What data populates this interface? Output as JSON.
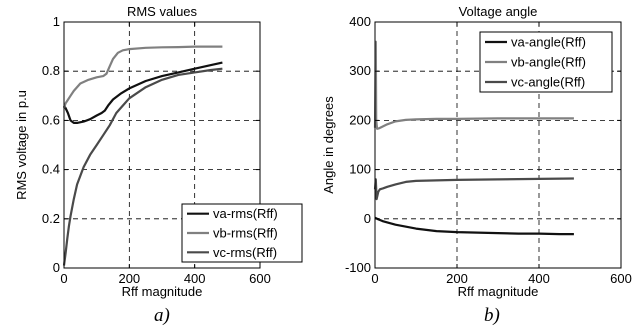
{
  "chart_data": [
    {
      "type": "line",
      "title": "RMS values",
      "xlabel": "Rff magnitude",
      "ylabel": "RMS voltage in p.u",
      "xlim": [
        0,
        600
      ],
      "ylim": [
        0,
        1
      ],
      "xticks": [
        0,
        200,
        400,
        600
      ],
      "yticks": [
        0,
        0.2,
        0.4,
        0.6,
        0.8,
        1
      ],
      "yticklabels": [
        "0",
        "0.2",
        "0.4",
        "0.6",
        "0.8",
        "1"
      ],
      "grid": true,
      "legend_position": "bottom-right",
      "caption": "a)",
      "series": [
        {
          "name": "va-rms(Rff)",
          "color": "#111111",
          "x": [
            0,
            5,
            12,
            20,
            30,
            40,
            60,
            80,
            100,
            115,
            125,
            135,
            150,
            175,
            200,
            250,
            300,
            350,
            400,
            450,
            485
          ],
          "y": [
            0.66,
            0.65,
            0.63,
            0.6,
            0.59,
            0.59,
            0.595,
            0.605,
            0.62,
            0.63,
            0.64,
            0.66,
            0.685,
            0.71,
            0.73,
            0.76,
            0.78,
            0.795,
            0.81,
            0.825,
            0.835
          ]
        },
        {
          "name": "vb-rms(Rff)",
          "color": "#808080",
          "x": [
            0,
            5,
            10,
            20,
            30,
            50,
            75,
            100,
            120,
            130,
            140,
            150,
            165,
            180,
            200,
            250,
            300,
            350,
            400,
            450,
            485
          ],
          "y": [
            0.65,
            0.67,
            0.68,
            0.7,
            0.72,
            0.75,
            0.765,
            0.775,
            0.78,
            0.79,
            0.82,
            0.85,
            0.875,
            0.885,
            0.89,
            0.895,
            0.897,
            0.898,
            0.9,
            0.9,
            0.9
          ]
        },
        {
          "name": "vc-rms(Rff)",
          "color": "#4a4a4a",
          "x": [
            0,
            5,
            10,
            15,
            20,
            30,
            40,
            60,
            80,
            100,
            120,
            140,
            160,
            180,
            200,
            250,
            300,
            350,
            400,
            450,
            485
          ],
          "y": [
            0.01,
            0.06,
            0.12,
            0.17,
            0.21,
            0.28,
            0.34,
            0.41,
            0.46,
            0.5,
            0.54,
            0.58,
            0.63,
            0.66,
            0.69,
            0.735,
            0.765,
            0.785,
            0.795,
            0.805,
            0.81
          ]
        }
      ]
    },
    {
      "type": "line",
      "title": "Voltage angle",
      "xlabel": "Rff magnitude",
      "ylabel": "Angle in degrees",
      "xlim": [
        0,
        600
      ],
      "ylim": [
        -100,
        400
      ],
      "xticks": [
        0,
        200,
        400,
        600
      ],
      "yticks": [
        -100,
        0,
        100,
        200,
        300,
        400
      ],
      "yticklabels": [
        "-100",
        "0",
        "100",
        "200",
        "300",
        "400"
      ],
      "grid": true,
      "legend_position": "top-right",
      "caption": "b)",
      "series": [
        {
          "name": "va-angle(Rff)",
          "color": "#111111",
          "x": [
            0,
            5,
            20,
            50,
            100,
            150,
            200,
            250,
            300,
            350,
            400,
            450,
            485
          ],
          "y": [
            2,
            0,
            -5,
            -12,
            -20,
            -25,
            -27,
            -28,
            -29,
            -30,
            -30,
            -31,
            -31
          ]
        },
        {
          "name": "vb-angle(Rff)",
          "color": "#808080",
          "x": [
            0,
            2,
            3,
            5,
            10,
            20,
            30,
            50,
            75,
            100,
            150,
            200,
            300,
            400,
            485
          ],
          "y": [
            185,
            360,
            200,
            183,
            184,
            188,
            192,
            198,
            201,
            202,
            203,
            203,
            204,
            204,
            204
          ]
        },
        {
          "name": "vc-angle(Rff)",
          "color": "#4a4a4a",
          "x": [
            0,
            2,
            4,
            8,
            12,
            20,
            30,
            50,
            75,
            100,
            150,
            200,
            300,
            400,
            485
          ],
          "y": [
            60,
            80,
            40,
            55,
            60,
            62,
            65,
            70,
            75,
            77,
            78,
            79,
            80,
            81,
            82
          ]
        }
      ]
    }
  ]
}
